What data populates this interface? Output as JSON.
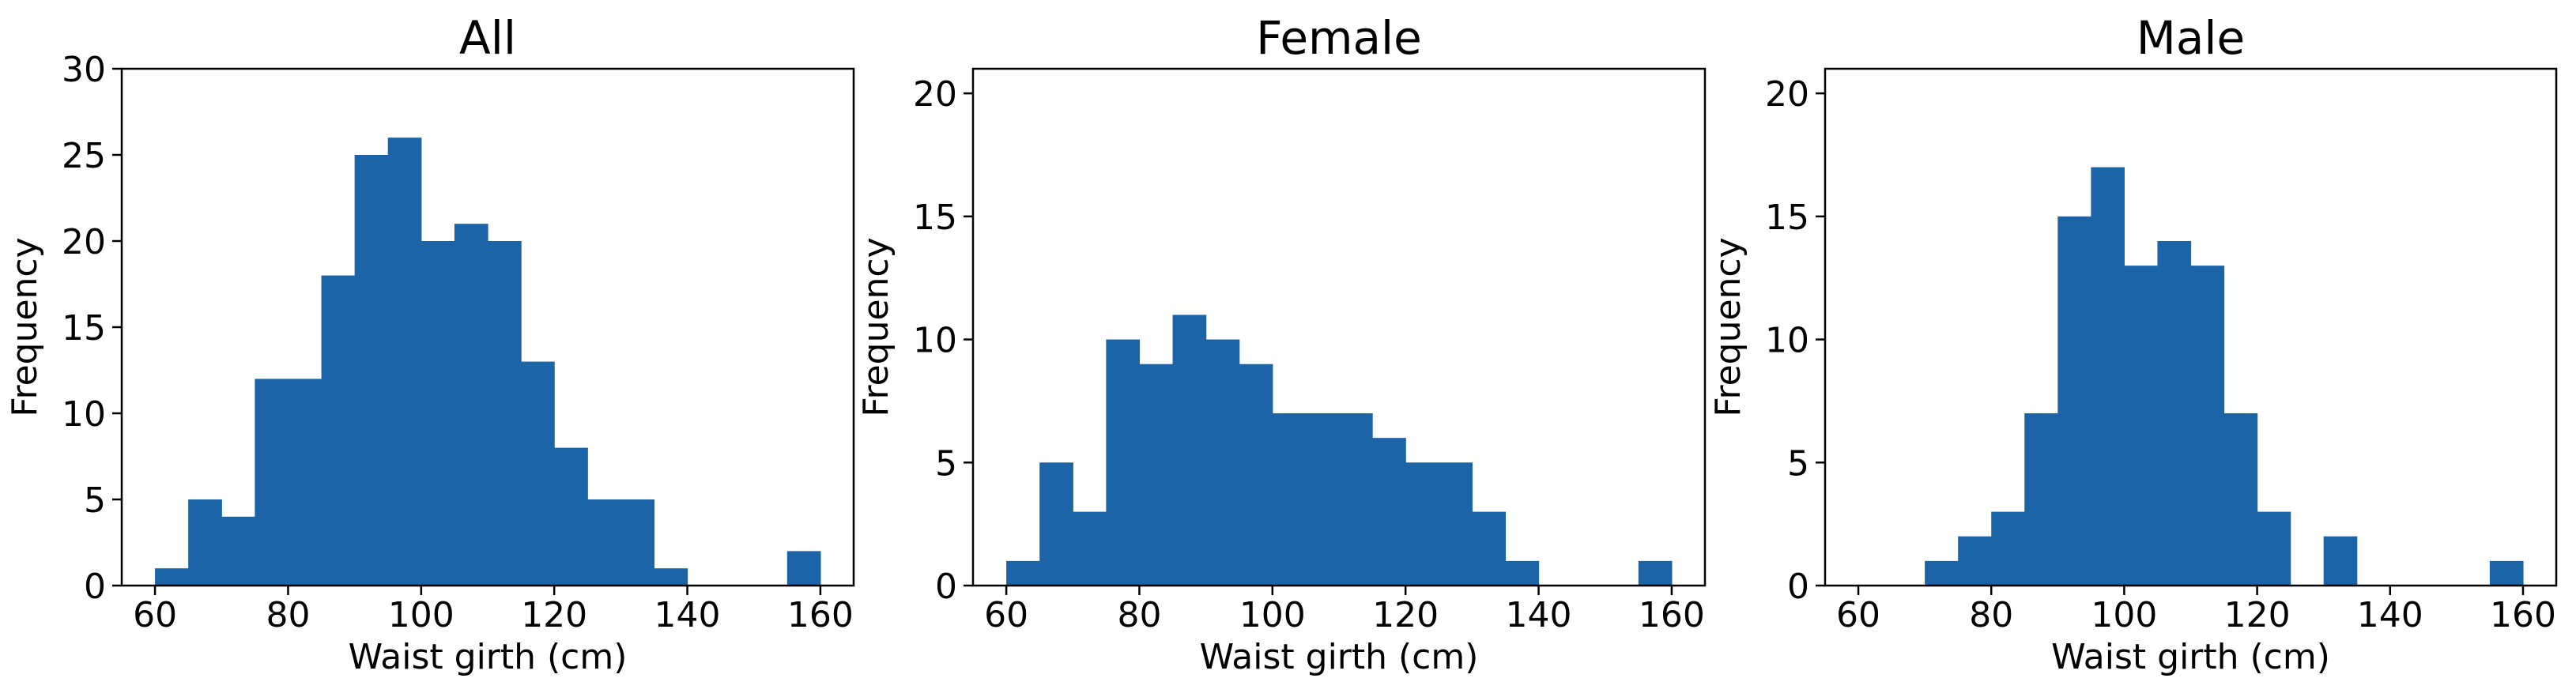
{
  "figure": {
    "bar_color": "#1b64a8",
    "background": "#ffffff"
  },
  "chart_data": [
    {
      "type": "bar",
      "subtype": "histogram",
      "title": "All",
      "xlabel": "Waist girth (cm)",
      "ylabel": "Frequency",
      "bin_edges": [
        60,
        65,
        70,
        75,
        80,
        85,
        90,
        95,
        100,
        105,
        110,
        115,
        120,
        125,
        130,
        135,
        140,
        145,
        150,
        155,
        160
      ],
      "values": [
        1,
        5,
        4,
        12,
        12,
        18,
        25,
        26,
        20,
        21,
        20,
        13,
        8,
        5,
        5,
        1,
        0,
        0,
        0,
        2
      ],
      "xlim": [
        55,
        165
      ],
      "ylim": [
        0,
        30
      ],
      "xticks": [
        60,
        80,
        100,
        120,
        140,
        160
      ],
      "yticks": [
        0,
        5,
        10,
        15,
        20,
        25,
        30
      ],
      "grid": false,
      "legend": null
    },
    {
      "type": "bar",
      "subtype": "histogram",
      "title": "Female",
      "xlabel": "Waist girth (cm)",
      "ylabel": "Frequency",
      "bin_edges": [
        60,
        65,
        70,
        75,
        80,
        85,
        90,
        95,
        100,
        105,
        110,
        115,
        120,
        125,
        130,
        135,
        140,
        145,
        150,
        155,
        160
      ],
      "values": [
        1,
        5,
        3,
        10,
        9,
        11,
        10,
        9,
        7,
        7,
        7,
        6,
        5,
        5,
        3,
        1,
        0,
        0,
        0,
        1
      ],
      "xlim": [
        55,
        165
      ],
      "ylim": [
        0,
        21
      ],
      "xticks": [
        60,
        80,
        100,
        120,
        140,
        160
      ],
      "yticks": [
        0,
        5,
        10,
        15,
        20
      ],
      "grid": false,
      "legend": null
    },
    {
      "type": "bar",
      "subtype": "histogram",
      "title": "Male",
      "xlabel": "Waist girth (cm)",
      "ylabel": "Frequency",
      "bin_edges": [
        60,
        65,
        70,
        75,
        80,
        85,
        90,
        95,
        100,
        105,
        110,
        115,
        120,
        125,
        130,
        135,
        140,
        145,
        150,
        155,
        160
      ],
      "values": [
        0,
        0,
        1,
        2,
        3,
        7,
        15,
        17,
        13,
        14,
        13,
        7,
        3,
        0,
        2,
        0,
        0,
        0,
        0,
        1
      ],
      "xlim": [
        55,
        165
      ],
      "ylim": [
        0,
        21
      ],
      "xticks": [
        60,
        80,
        100,
        120,
        140,
        160
      ],
      "yticks": [
        0,
        5,
        10,
        15,
        20
      ],
      "grid": false,
      "legend": null
    }
  ],
  "panels": [
    {
      "title": "All",
      "xlabel": "Waist girth (cm)",
      "ylabel": "Frequency"
    },
    {
      "title": "Female",
      "xlabel": "Waist girth (cm)",
      "ylabel": "Frequency"
    },
    {
      "title": "Male",
      "xlabel": "Waist girth (cm)",
      "ylabel": "Frequency"
    }
  ]
}
